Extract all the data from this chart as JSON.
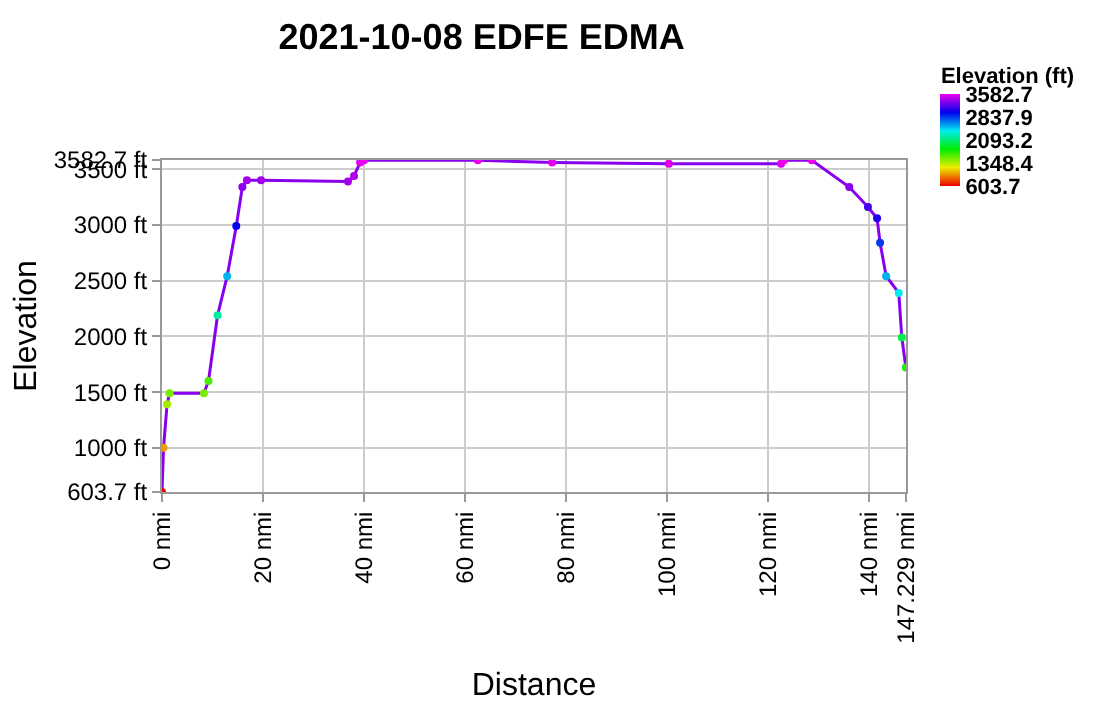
{
  "chart_data": {
    "type": "line",
    "title": "2021-10-08 EDFE EDMA",
    "xlabel": "Distance",
    "ylabel": "Elevation",
    "clabel": "Elevation (ft)",
    "x": [
      0,
      0.3,
      1.0,
      1.5,
      8.3,
      9.2,
      11.0,
      12.9,
      14.7,
      15.9,
      16.8,
      19.6,
      36.8,
      38.0,
      39.2,
      40.0,
      62.5,
      77.2,
      100.3,
      122.5,
      123.1,
      128.6,
      136.0,
      139.7,
      141.5,
      142.1,
      143.3,
      145.8,
      146.4,
      147.2
    ],
    "values": [
      603.7,
      1000,
      1390,
      1490,
      1490,
      1600,
      2190,
      2540,
      2990,
      3340,
      3400,
      3400,
      3390,
      3440,
      3560,
      3580,
      3580,
      3560,
      3550,
      3550,
      3580,
      3580,
      3340,
      3160,
      3060,
      2840,
      2540,
      2390,
      1990,
      1720
    ],
    "marker": "circle",
    "clim": [
      603.7,
      3582.7
    ],
    "cticks": [
      3582.7,
      2837.9,
      2093.2,
      1348.4,
      603.7
    ],
    "xlim": [
      0,
      147.229
    ],
    "xticks": [
      {
        "value": 0,
        "label": "0 nmi"
      },
      {
        "value": 20,
        "label": "20 nmi"
      },
      {
        "value": 40,
        "label": "40 nmi"
      },
      {
        "value": 60,
        "label": "60 nmi"
      },
      {
        "value": 80,
        "label": "80 nmi"
      },
      {
        "value": 100,
        "label": "100 nmi"
      },
      {
        "value": 120,
        "label": "120 nmi"
      },
      {
        "value": 140,
        "label": "140 nmi"
      },
      {
        "value": 147.229,
        "label": "147.229 nmi"
      }
    ],
    "ylim": [
      603.7,
      3582.7
    ],
    "yticks": [
      {
        "value": 603.7,
        "label": "603.7 ft"
      },
      {
        "value": 1000,
        "label": "1000 ft"
      },
      {
        "value": 1500,
        "label": "1500 ft"
      },
      {
        "value": 2000,
        "label": "2000 ft"
      },
      {
        "value": 2500,
        "label": "2500 ft"
      },
      {
        "value": 3000,
        "label": "3000 ft"
      },
      {
        "value": 3500,
        "label": "3500 ft"
      },
      {
        "value": 3582.7,
        "label": "3582.7 ft"
      }
    ],
    "grid": true
  }
}
